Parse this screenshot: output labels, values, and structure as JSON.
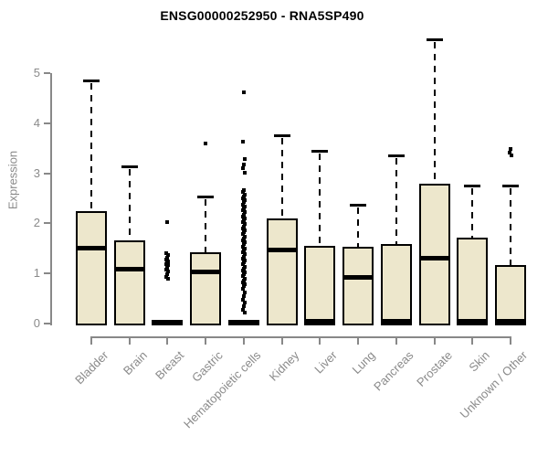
{
  "colors": {
    "background": "#ffffff",
    "box_fill": "#EDE7CC",
    "box_border": "#000000",
    "median": "#000000",
    "whisker": "#000000",
    "outlier": "#000000",
    "axis": "#888888",
    "tick_text": "#8a8a8a",
    "title_text": "#000000"
  },
  "chart_data": {
    "type": "boxplot",
    "title": "ENSG00000252950 - RNA5SP490",
    "xlabel": "",
    "ylabel": "Expression",
    "ylim": [
      0,
      5
    ],
    "yticks": [
      0,
      1,
      2,
      3,
      4,
      5
    ],
    "grid": false,
    "legend": "none",
    "categories": [
      "Bladder",
      "Brain",
      "Breast",
      "Gastric",
      "Hematopoietic cells",
      "Kidney",
      "Liver",
      "Lung",
      "Pancreas",
      "Prostate",
      "Skin",
      "Unknown / Other"
    ],
    "boxes": [
      {
        "category": "Bladder",
        "whisker_low": 0,
        "q1": 0,
        "median": 1.5,
        "q3": 2.2,
        "whisker_high": 4.85,
        "outliers": []
      },
      {
        "category": "Brain",
        "whisker_low": 0,
        "q1": 0,
        "median": 1.08,
        "q3": 1.62,
        "whisker_high": 3.14,
        "outliers": []
      },
      {
        "category": "Breast",
        "whisker_low": 0,
        "q1": 0,
        "median": 0.02,
        "q3": 0.04,
        "whisker_high": 0.04,
        "outliers": [
          2.02,
          1.4,
          1.36,
          1.32,
          1.28,
          1.25,
          1.22,
          1.19,
          1.16,
          1.12,
          1.08,
          1.04,
          0.99,
          0.93,
          0.89
        ]
      },
      {
        "category": "Gastric",
        "whisker_low": 0,
        "q1": 0,
        "median": 1.04,
        "q3": 1.39,
        "whisker_high": 2.53,
        "outliers": [
          3.59
        ]
      },
      {
        "category": "Hematopoietic cells",
        "whisker_low": 0,
        "q1": 0,
        "median": 0.02,
        "q3": 0.04,
        "whisker_high": 0.04,
        "outliers": [
          4.62,
          3.63,
          3.28,
          3.18,
          3.1,
          3.02,
          2.66,
          2.62,
          2.58,
          2.54,
          2.5,
          2.46,
          2.42,
          2.38,
          2.34,
          2.3,
          2.26,
          2.22,
          2.18,
          2.14,
          2.1,
          2.06,
          2.02,
          1.98,
          1.94,
          1.9,
          1.86,
          1.82,
          1.78,
          1.74,
          1.7,
          1.66,
          1.62,
          1.58,
          1.54,
          1.5,
          1.46,
          1.42,
          1.38,
          1.34,
          1.3,
          1.26,
          1.22,
          1.18,
          1.14,
          1.1,
          1.06,
          1.02,
          0.98,
          0.94,
          0.9,
          0.86,
          0.82,
          0.78,
          0.74,
          0.7,
          0.62,
          0.55,
          0.48,
          0.42,
          0.35,
          0.28,
          0.22
        ]
      },
      {
        "category": "Kidney",
        "whisker_low": 0,
        "q1": 0,
        "median": 1.47,
        "q3": 2.07,
        "whisker_high": 3.76,
        "outliers": []
      },
      {
        "category": "Liver",
        "whisker_low": 0,
        "q1": 0,
        "median": 0.04,
        "q3": 1.52,
        "whisker_high": 3.44,
        "outliers": []
      },
      {
        "category": "Lung",
        "whisker_low": 0,
        "q1": 0,
        "median": 0.93,
        "q3": 1.49,
        "whisker_high": 2.37,
        "outliers": []
      },
      {
        "category": "Pancreas",
        "whisker_low": 0,
        "q1": 0,
        "median": 0.04,
        "q3": 1.56,
        "whisker_high": 3.36,
        "outliers": []
      },
      {
        "category": "Prostate",
        "whisker_low": 0,
        "q1": 0,
        "median": 1.3,
        "q3": 2.76,
        "whisker_high": 5.67,
        "outliers": []
      },
      {
        "category": "Skin",
        "whisker_low": 0,
        "q1": 0,
        "median": 0.04,
        "q3": 1.67,
        "whisker_high": 2.76,
        "outliers": []
      },
      {
        "category": "Unknown / Other",
        "whisker_low": 0,
        "q1": 0,
        "median": 0.04,
        "q3": 1.14,
        "whisker_high": 2.75,
        "outliers": [
          3.48,
          3.42,
          3.36
        ]
      }
    ]
  }
}
